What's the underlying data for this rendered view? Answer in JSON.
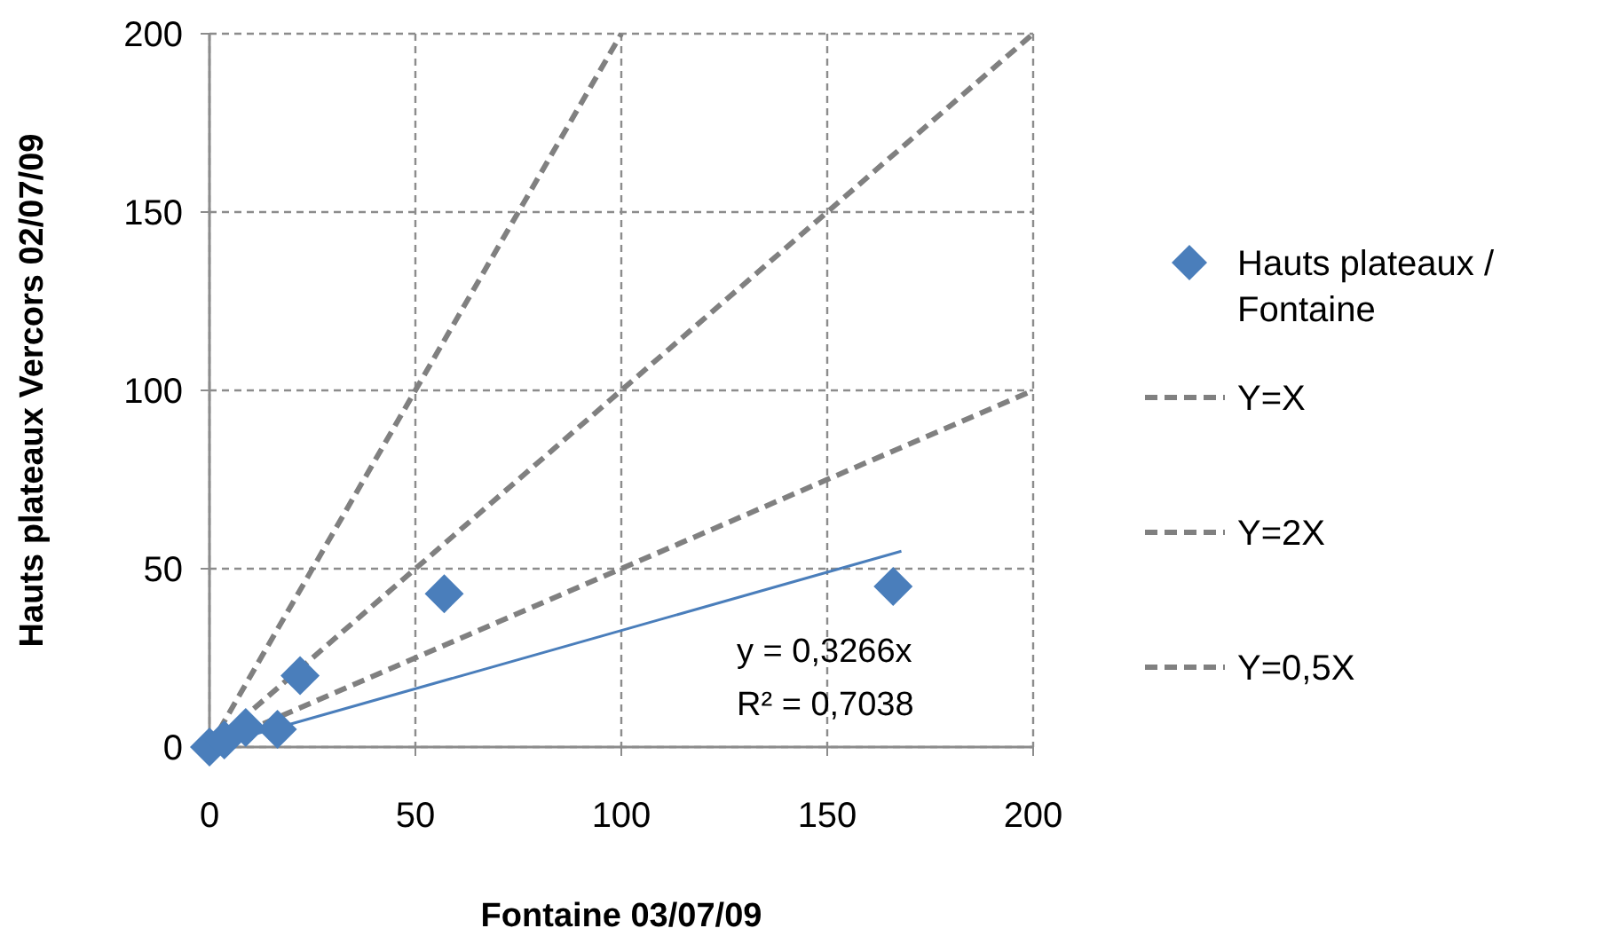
{
  "chart_data": {
    "type": "scatter",
    "xlabel": "Fontaine 03/07/09",
    "ylabel": "Hauts plateaux Vercors 02/07/09",
    "xlim": [
      0,
      200
    ],
    "ylim": [
      0,
      200
    ],
    "xticks": [
      0,
      50,
      100,
      150,
      200
    ],
    "yticks": [
      0,
      50,
      100,
      150,
      200
    ],
    "grid": true,
    "legend": "right",
    "series": [
      {
        "name": "Hauts plateaux / Fontaine",
        "marker": "diamond",
        "color": "#4a7ebb",
        "x": [
          0,
          3.6,
          8.8,
          16.5,
          22,
          57,
          166
        ],
        "values": [
          0,
          2,
          5.5,
          5,
          20,
          43,
          45
        ]
      },
      {
        "type": "line",
        "color": "#4a7ebb",
        "line_style": "solid",
        "x": [
          0,
          168
        ],
        "values": [
          0,
          54.9
        ]
      },
      {
        "name": "Y=X",
        "type": "line",
        "color": "#808080",
        "line_style": "dashed",
        "x": [
          0,
          200
        ],
        "values": [
          0,
          200
        ]
      },
      {
        "name": "Y=2X",
        "type": "line",
        "color": "#808080",
        "line_style": "dashed",
        "x": [
          0,
          100
        ],
        "values": [
          0,
          200
        ]
      },
      {
        "name": "Y=0,5X",
        "type": "line",
        "color": "#808080",
        "line_style": "dashed",
        "x": [
          0,
          200
        ],
        "values": [
          0,
          100
        ]
      }
    ],
    "annotations": [
      "y = 0,3266x",
      "R² = 0,7038"
    ]
  }
}
